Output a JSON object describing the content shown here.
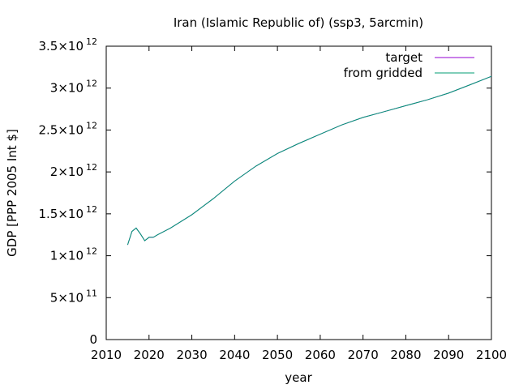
{
  "chart_data": {
    "type": "line",
    "title": "Iran (Islamic Republic of) (ssp3, 5arcmin)",
    "xlabel": "year",
    "ylabel": "GDP [PPP 2005 Int $]",
    "xlim": [
      2010,
      2100
    ],
    "ylim": [
      0,
      3500000000000.0
    ],
    "x_ticks": [
      {
        "value": 2010,
        "label": "2010"
      },
      {
        "value": 2020,
        "label": "2020"
      },
      {
        "value": 2030,
        "label": "2030"
      },
      {
        "value": 2040,
        "label": "2040"
      },
      {
        "value": 2050,
        "label": "2050"
      },
      {
        "value": 2060,
        "label": "2060"
      },
      {
        "value": 2070,
        "label": "2070"
      },
      {
        "value": 2080,
        "label": "2080"
      },
      {
        "value": 2090,
        "label": "2090"
      },
      {
        "value": 2100,
        "label": "2100"
      }
    ],
    "y_ticks": [
      {
        "value": 0,
        "mantissa": "0",
        "exp": ""
      },
      {
        "value": 500000000000.0,
        "mantissa": "5×10",
        "exp": "11"
      },
      {
        "value": 1000000000000.0,
        "mantissa": "1×10",
        "exp": "12"
      },
      {
        "value": 1500000000000.0,
        "mantissa": "1.5×10",
        "exp": "12"
      },
      {
        "value": 2000000000000.0,
        "mantissa": "2×10",
        "exp": "12"
      },
      {
        "value": 2500000000000.0,
        "mantissa": "2.5×10",
        "exp": "12"
      },
      {
        "value": 3000000000000.0,
        "mantissa": "3×10",
        "exp": "12"
      },
      {
        "value": 3500000000000.0,
        "mantissa": "3.5×10",
        "exp": "12"
      }
    ],
    "legend_position": "top-right",
    "grid": false,
    "x": [
      2015,
      2016,
      2017,
      2018,
      2019,
      2020,
      2021,
      2022,
      2025,
      2030,
      2035,
      2040,
      2045,
      2050,
      2055,
      2060,
      2065,
      2070,
      2075,
      2080,
      2085,
      2090,
      2095,
      2100
    ],
    "series": [
      {
        "name": "target",
        "color": "#9400d3",
        "values": [
          1130000000000.0,
          1290000000000.0,
          1330000000000.0,
          1260000000000.0,
          1180000000000.0,
          1220000000000.0,
          1220000000000.0,
          1250000000000.0,
          1330000000000.0,
          1490000000000.0,
          1680000000000.0,
          1890000000000.0,
          2070000000000.0,
          2220000000000.0,
          2340000000000.0,
          2450000000000.0,
          2560000000000.0,
          2650000000000.0,
          2720000000000.0,
          2790000000000.0,
          2860000000000.0,
          2940000000000.0,
          3040000000000.0,
          3140000000000.0
        ]
      },
      {
        "name": "from gridded",
        "color": "#009e73",
        "values": [
          1130000000000.0,
          1290000000000.0,
          1330000000000.0,
          1260000000000.0,
          1180000000000.0,
          1220000000000.0,
          1220000000000.0,
          1250000000000.0,
          1330000000000.0,
          1490000000000.0,
          1680000000000.0,
          1890000000000.0,
          2070000000000.0,
          2220000000000.0,
          2340000000000.0,
          2450000000000.0,
          2560000000000.0,
          2650000000000.0,
          2720000000000.0,
          2790000000000.0,
          2860000000000.0,
          2940000000000.0,
          3040000000000.0,
          3140000000000.0
        ]
      }
    ]
  }
}
